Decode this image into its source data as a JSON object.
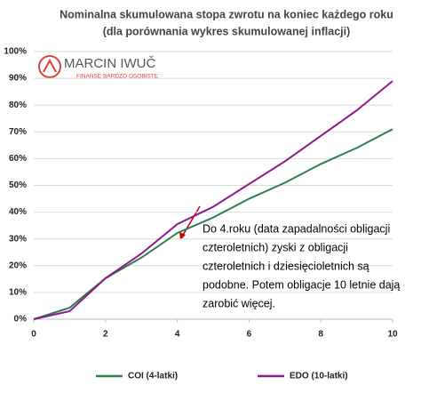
{
  "chart_data": {
    "type": "line",
    "title": [
      "Nominalna skumulowana stopa zwrotu na koniec każdego roku",
      "(dla porównania wykres skumulowanej inflacji)"
    ],
    "x": [
      0,
      1,
      2,
      3,
      4,
      5,
      6,
      7,
      8,
      9,
      10
    ],
    "series": [
      {
        "name": "COI (4-latki)",
        "color": "#2e7d4f",
        "values": [
          0,
          4.3,
          15.3,
          23,
          32.2,
          38,
          45,
          51,
          58,
          64,
          71
        ]
      },
      {
        "name": "EDO (10-latki)",
        "color": "#8b1a8b",
        "values": [
          0,
          3,
          15.3,
          24.5,
          35.5,
          42,
          50.5,
          59,
          68.5,
          78,
          89
        ]
      }
    ],
    "xlim": [
      0,
      10
    ],
    "xticks": [
      0,
      2,
      4,
      6,
      8,
      10
    ],
    "ylim": [
      0,
      100
    ],
    "yticks": [
      {
        "value": 0,
        "label": "0%"
      },
      {
        "value": 10,
        "label": "10%"
      },
      {
        "value": 20,
        "label": "20%"
      },
      {
        "value": 30,
        "label": "30%"
      },
      {
        "value": 40,
        "label": "40%"
      },
      {
        "value": 50,
        "label": "50%"
      },
      {
        "value": 60,
        "label": "60%"
      },
      {
        "value": 70,
        "label": "70%"
      },
      {
        "value": 80,
        "label": "80%"
      },
      {
        "value": 90,
        "label": "90%"
      },
      {
        "value": 100,
        "label": "100%"
      }
    ],
    "grid": true,
    "legend": "bottom",
    "annotation": [
      "Do 4.roku (data zapadalności obligacji",
      "czteroletnich)  zyski z obligacji",
      "czteroletnich i dziesięcioletnich są",
      "podobne. Potem obligacje 10 letnie  dają",
      "zarobić więcej."
    ]
  },
  "logo": {
    "name": "MARCIN IWUČ",
    "tagline": "FINANSE BARDZO OSOBISTE"
  }
}
